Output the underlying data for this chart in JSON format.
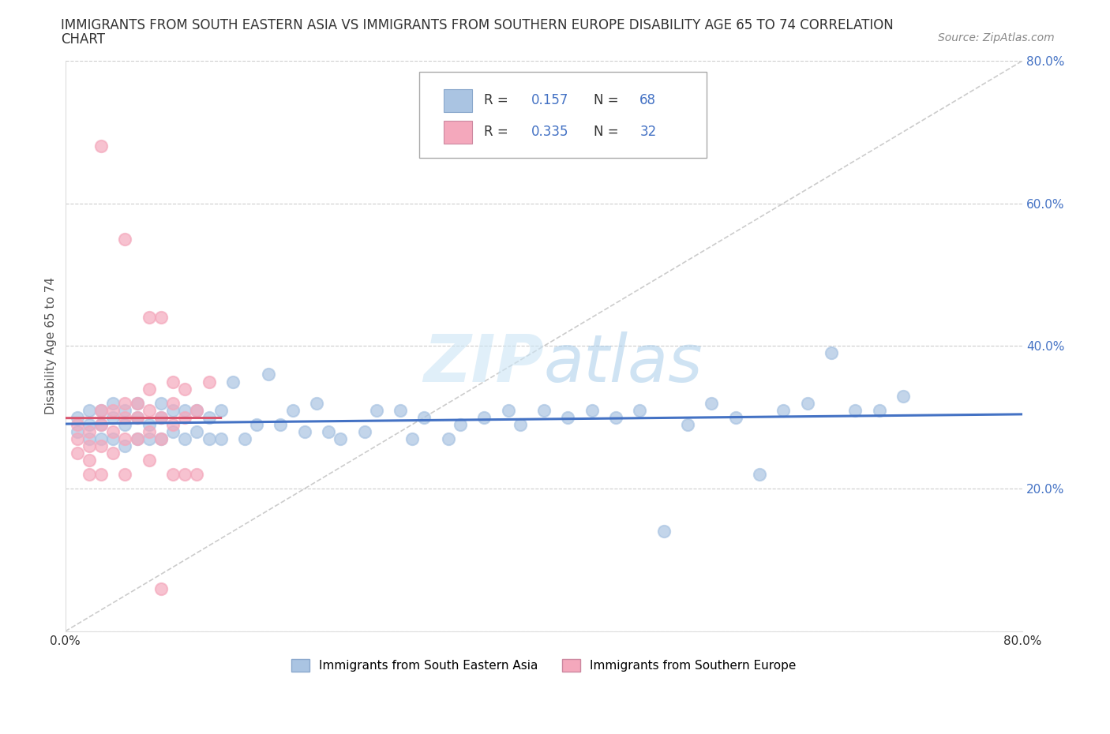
{
  "title_line1": "IMMIGRANTS FROM SOUTH EASTERN ASIA VS IMMIGRANTS FROM SOUTHERN EUROPE DISABILITY AGE 65 TO 74 CORRELATION",
  "title_line2": "CHART",
  "source": "Source: ZipAtlas.com",
  "ylabel": "Disability Age 65 to 74",
  "xlim": [
    0.0,
    0.8
  ],
  "ylim": [
    0.0,
    0.8
  ],
  "xticks": [
    0.0,
    0.2,
    0.4,
    0.6,
    0.8
  ],
  "yticks": [
    0.0,
    0.2,
    0.4,
    0.6,
    0.8
  ],
  "xticklabels": [
    "0.0%",
    "",
    "",
    "",
    "80.0%"
  ],
  "right_yticklabels": [
    "",
    "20.0%",
    "40.0%",
    "60.0%",
    "80.0%"
  ],
  "R_sea": 0.157,
  "N_sea": 68,
  "R_se": 0.335,
  "N_se": 32,
  "color_sea": "#aac4e2",
  "color_se": "#f4a8bc",
  "trendline_color_sea": "#4472c4",
  "trendline_color_se": "#d9546e",
  "legend_text_color": "#4472c4",
  "sea_x": [
    0.01,
    0.01,
    0.02,
    0.02,
    0.02,
    0.03,
    0.03,
    0.03,
    0.04,
    0.04,
    0.04,
    0.05,
    0.05,
    0.05,
    0.06,
    0.06,
    0.06,
    0.07,
    0.07,
    0.08,
    0.08,
    0.08,
    0.09,
    0.09,
    0.1,
    0.1,
    0.11,
    0.11,
    0.12,
    0.12,
    0.13,
    0.13,
    0.14,
    0.15,
    0.16,
    0.17,
    0.18,
    0.19,
    0.2,
    0.21,
    0.22,
    0.23,
    0.25,
    0.26,
    0.28,
    0.29,
    0.3,
    0.32,
    0.33,
    0.35,
    0.37,
    0.38,
    0.4,
    0.42,
    0.44,
    0.46,
    0.48,
    0.5,
    0.52,
    0.54,
    0.56,
    0.58,
    0.6,
    0.62,
    0.64,
    0.66,
    0.68,
    0.7
  ],
  "sea_y": [
    0.28,
    0.3,
    0.27,
    0.29,
    0.31,
    0.27,
    0.29,
    0.31,
    0.27,
    0.3,
    0.32,
    0.26,
    0.29,
    0.31,
    0.27,
    0.3,
    0.32,
    0.27,
    0.29,
    0.27,
    0.3,
    0.32,
    0.28,
    0.31,
    0.27,
    0.31,
    0.28,
    0.31,
    0.27,
    0.3,
    0.27,
    0.31,
    0.35,
    0.27,
    0.29,
    0.36,
    0.29,
    0.31,
    0.28,
    0.32,
    0.28,
    0.27,
    0.28,
    0.31,
    0.31,
    0.27,
    0.3,
    0.27,
    0.29,
    0.3,
    0.31,
    0.29,
    0.31,
    0.3,
    0.31,
    0.3,
    0.31,
    0.14,
    0.29,
    0.32,
    0.3,
    0.22,
    0.31,
    0.32,
    0.39,
    0.31,
    0.31,
    0.33
  ],
  "se_x": [
    0.01,
    0.01,
    0.01,
    0.02,
    0.02,
    0.02,
    0.03,
    0.03,
    0.03,
    0.04,
    0.04,
    0.04,
    0.05,
    0.05,
    0.05,
    0.06,
    0.06,
    0.06,
    0.07,
    0.07,
    0.07,
    0.07,
    0.08,
    0.08,
    0.08,
    0.09,
    0.09,
    0.09,
    0.1,
    0.1,
    0.11,
    0.12
  ],
  "se_y": [
    0.25,
    0.27,
    0.29,
    0.24,
    0.26,
    0.28,
    0.26,
    0.29,
    0.31,
    0.25,
    0.28,
    0.31,
    0.27,
    0.3,
    0.32,
    0.27,
    0.3,
    0.32,
    0.28,
    0.31,
    0.34,
    0.44,
    0.27,
    0.3,
    0.44,
    0.29,
    0.32,
    0.35,
    0.3,
    0.34,
    0.31,
    0.35
  ],
  "se_outliers_x": [
    0.03,
    0.05,
    0.02,
    0.03,
    0.05,
    0.07,
    0.08,
    0.09,
    0.1,
    0.11
  ],
  "se_outliers_y": [
    0.68,
    0.55,
    0.22,
    0.22,
    0.22,
    0.24,
    0.06,
    0.22,
    0.22,
    0.22
  ]
}
